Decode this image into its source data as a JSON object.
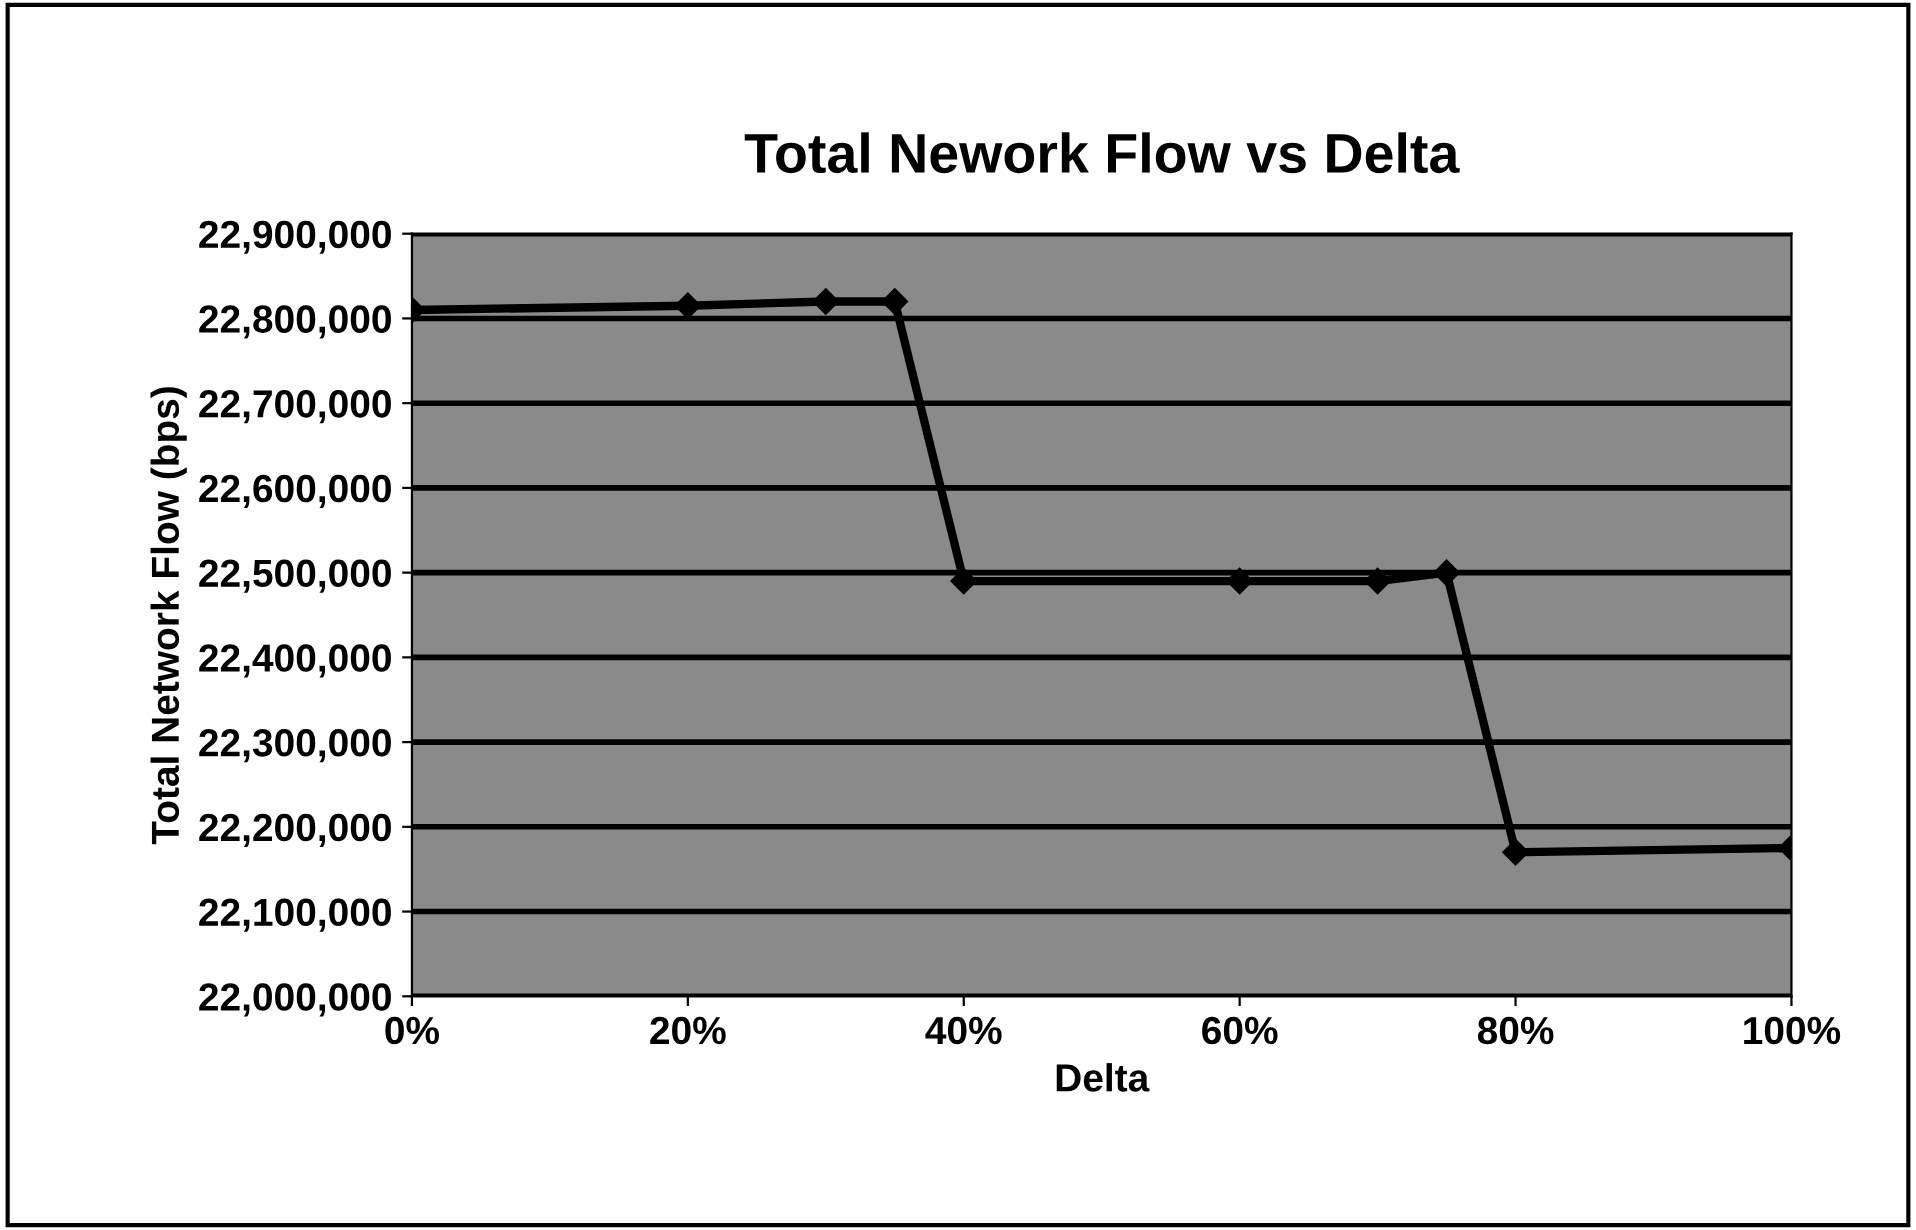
{
  "chart_data": {
    "type": "line",
    "title": "Total Nework Flow vs Delta",
    "xlabel": "Delta",
    "ylabel": "Total Network Flow (bps)",
    "x": [
      0,
      0.2,
      0.3,
      0.35,
      0.4,
      0.6,
      0.7,
      0.75,
      0.8,
      1.0
    ],
    "series": [
      {
        "color": "#000000",
        "values": [
          22810000,
          22815000,
          22820000,
          22820000,
          22490000,
          22490000,
          22490000,
          22500000,
          22170000,
          22175000
        ]
      }
    ],
    "xlim": [
      0,
      1
    ],
    "xticks": [
      {
        "value": 0,
        "label": "0%"
      },
      {
        "value": 0.2,
        "label": "20%"
      },
      {
        "value": 0.4,
        "label": "40%"
      },
      {
        "value": 0.6,
        "label": "60%"
      },
      {
        "value": 0.8,
        "label": "80%"
      },
      {
        "value": 1.0,
        "label": "100%"
      }
    ],
    "ylim": [
      22000000,
      22900000
    ],
    "yticks": [
      {
        "value": 22000000,
        "label": "22,000,000"
      },
      {
        "value": 22100000,
        "label": "22,100,000"
      },
      {
        "value": 22200000,
        "label": "22,200,000"
      },
      {
        "value": 22300000,
        "label": "22,300,000"
      },
      {
        "value": 22400000,
        "label": "22,400,000"
      },
      {
        "value": 22500000,
        "label": "22,500,000"
      },
      {
        "value": 22600000,
        "label": "22,600,000"
      },
      {
        "value": 22700000,
        "label": "22,700,000"
      },
      {
        "value": 22800000,
        "label": "22,800,000"
      },
      {
        "value": 22900000,
        "label": "22,900,000"
      }
    ],
    "grid": "y",
    "marker": "diamond",
    "line_style": "solid"
  }
}
